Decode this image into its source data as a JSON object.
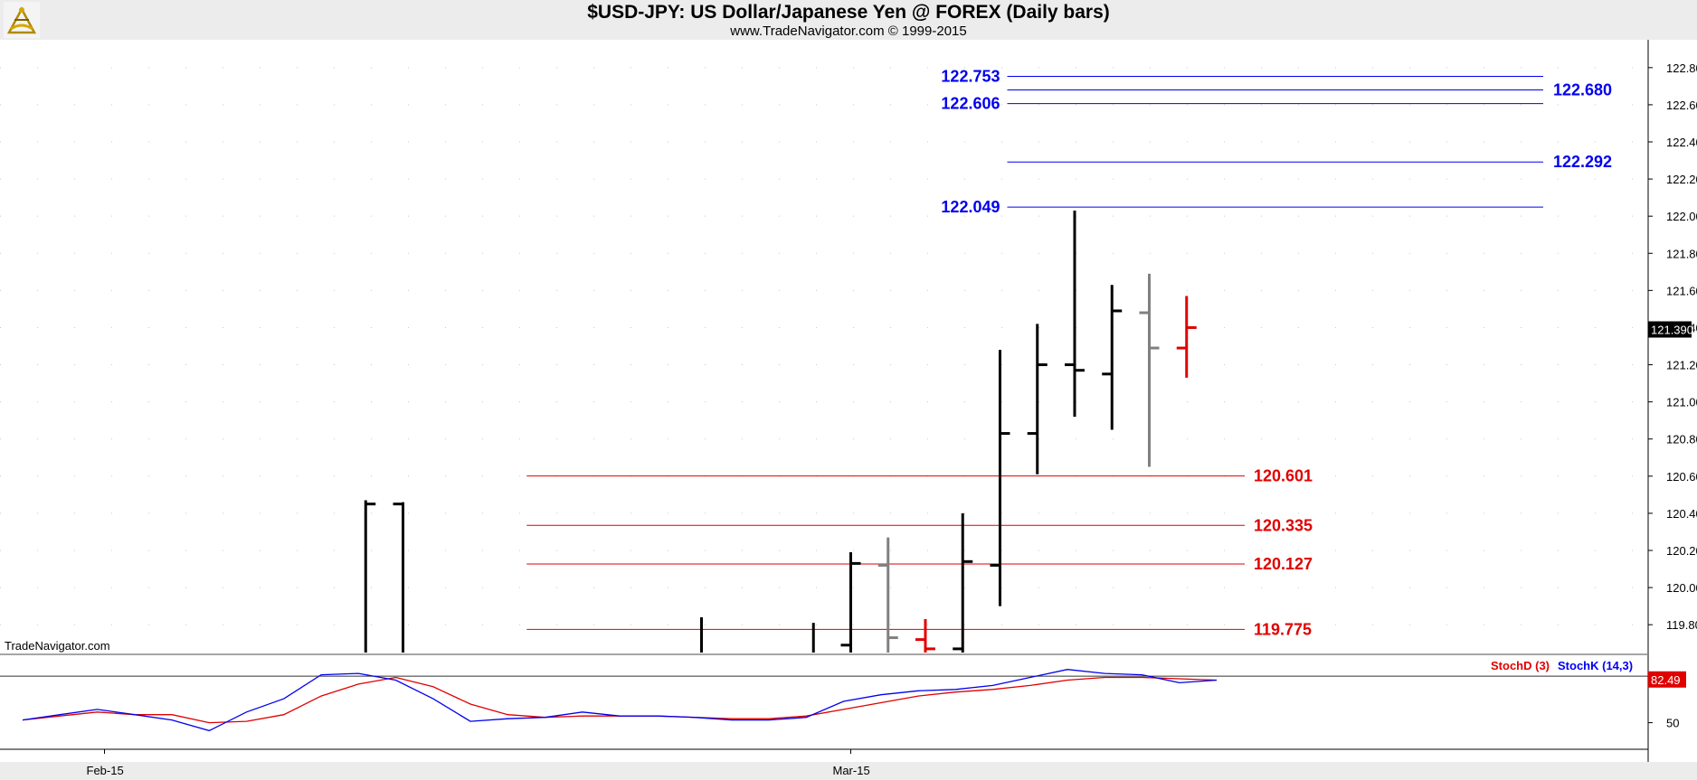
{
  "header": {
    "title": "$USD-JPY:  US Dollar/Japanese Yen @ FOREX  (Daily bars)",
    "copyright": "www.TradeNavigator.com © 1999-2015"
  },
  "watermark": "TradeNavigator.com",
  "colors": {
    "up_bar": "#000000",
    "neutral_bar": "#808080",
    "last_bar": "#e00000",
    "blue_level": "#0000ee",
    "red_level": "#e00000",
    "stoch_d": "#e00000",
    "stoch_k": "#0000ee"
  },
  "chart_data": [
    {
      "type": "ohlc",
      "title": "$USD-JPY:  US Dollar/Japanese Yen @ FOREX  (Daily bars)",
      "ylim": [
        119.65,
        122.95
      ],
      "y_ticks": [
        "122.800",
        "122.600",
        "122.400",
        "122.200",
        "122.000",
        "121.800",
        "121.600",
        "121.400",
        "121.200",
        "121.000",
        "120.800",
        "120.600",
        "120.400",
        "120.200",
        "120.000",
        "119.800"
      ],
      "x_labels": [
        {
          "bar": 2,
          "label": "Feb-15"
        },
        {
          "bar": 22,
          "label": "Mar-15"
        }
      ],
      "last_price": "121.390",
      "bars": [
        {
          "i": 9,
          "high": 120.47,
          "low": 119.65,
          "open": null,
          "close": 120.45,
          "color": "up_bar"
        },
        {
          "i": 10,
          "high": 120.46,
          "low": 119.65,
          "open": 120.45,
          "close": null,
          "color": "up_bar"
        },
        {
          "i": 18,
          "high": 119.84,
          "low": 119.65,
          "open": null,
          "close": null,
          "color": "up_bar"
        },
        {
          "i": 21,
          "high": 119.81,
          "low": 119.65,
          "open": null,
          "close": null,
          "color": "up_bar"
        },
        {
          "i": 22,
          "high": 120.19,
          "low": 119.65,
          "open": 119.69,
          "close": 120.13,
          "color": "up_bar"
        },
        {
          "i": 23,
          "high": 120.27,
          "low": 119.65,
          "open": 120.12,
          "close": 119.73,
          "color": "neutral_bar"
        },
        {
          "i": 24,
          "high": 119.83,
          "low": 119.65,
          "open": 119.72,
          "close": 119.67,
          "color": "last_bar"
        },
        {
          "i": 25,
          "high": 120.4,
          "low": 119.65,
          "open": 119.67,
          "close": 120.14,
          "color": "up_bar"
        },
        {
          "i": 26,
          "high": 121.28,
          "low": 119.9,
          "open": 120.12,
          "close": 120.83,
          "color": "up_bar"
        },
        {
          "i": 27,
          "high": 121.42,
          "low": 120.61,
          "open": 120.83,
          "close": 121.2,
          "color": "up_bar"
        },
        {
          "i": 28,
          "high": 122.03,
          "low": 120.92,
          "open": 121.2,
          "close": 121.17,
          "color": "up_bar"
        },
        {
          "i": 29,
          "high": 121.63,
          "low": 120.85,
          "open": 121.15,
          "close": 121.49,
          "color": "up_bar"
        },
        {
          "i": 30,
          "high": 121.69,
          "low": 120.65,
          "open": 121.48,
          "close": 121.29,
          "color": "neutral_bar"
        },
        {
          "i": 31,
          "high": 121.57,
          "low": 121.13,
          "open": 121.29,
          "close": 121.4,
          "color": "last_bar"
        }
      ],
      "levels": [
        {
          "value": 122.753,
          "label": "122.753",
          "color": "blue_level",
          "from_bar": 26,
          "label_side": "left"
        },
        {
          "value": 122.68,
          "label": "122.680",
          "color": "blue_level",
          "from_bar": 26,
          "label_side": "right"
        },
        {
          "value": 122.606,
          "label": "122.606",
          "color": "blue_level",
          "from_bar": 26,
          "label_side": "left"
        },
        {
          "value": 122.292,
          "label": "122.292",
          "color": "blue_level",
          "from_bar": 26,
          "label_side": "right"
        },
        {
          "value": 122.049,
          "label": "122.049",
          "color": "blue_level",
          "from_bar": 26,
          "label_side": "left"
        },
        {
          "value": 120.601,
          "label": "120.601",
          "color": "red_level",
          "from_bar": 13,
          "label_side": "right"
        },
        {
          "value": 120.335,
          "label": "120.335",
          "color": "red_level",
          "from_bar": 13,
          "label_side": "right"
        },
        {
          "value": 120.127,
          "label": "120.127",
          "color": "red_level",
          "from_bar": 13,
          "label_side": "right"
        },
        {
          "value": 119.775,
          "label": "119.775",
          "color": "red_level",
          "from_bar": 13,
          "label_side": "right"
        }
      ]
    },
    {
      "type": "line",
      "ylim": [
        30,
        100
      ],
      "y_ticks": [
        "50"
      ],
      "reference_line": 85,
      "last_value": "82.49",
      "series": [
        {
          "name": "StochD (3)",
          "color": "stoch_d",
          "values": [
            52,
            55,
            58,
            56,
            56,
            50,
            51,
            56,
            70,
            79,
            84,
            77,
            64,
            56,
            54,
            55,
            55,
            55,
            54,
            53,
            53,
            55,
            60,
            65,
            70,
            73,
            75,
            78,
            82,
            84,
            84,
            83,
            82
          ]
        },
        {
          "name": "StochK (14,3)",
          "color": "stoch_k",
          "values": [
            52,
            56,
            60,
            56,
            52,
            44,
            58,
            68,
            86,
            87,
            82,
            68,
            51,
            53,
            54,
            58,
            55,
            55,
            54,
            52,
            52,
            54,
            66,
            71,
            74,
            75,
            78,
            84,
            90,
            87,
            86,
            80,
            82
          ]
        }
      ]
    }
  ]
}
